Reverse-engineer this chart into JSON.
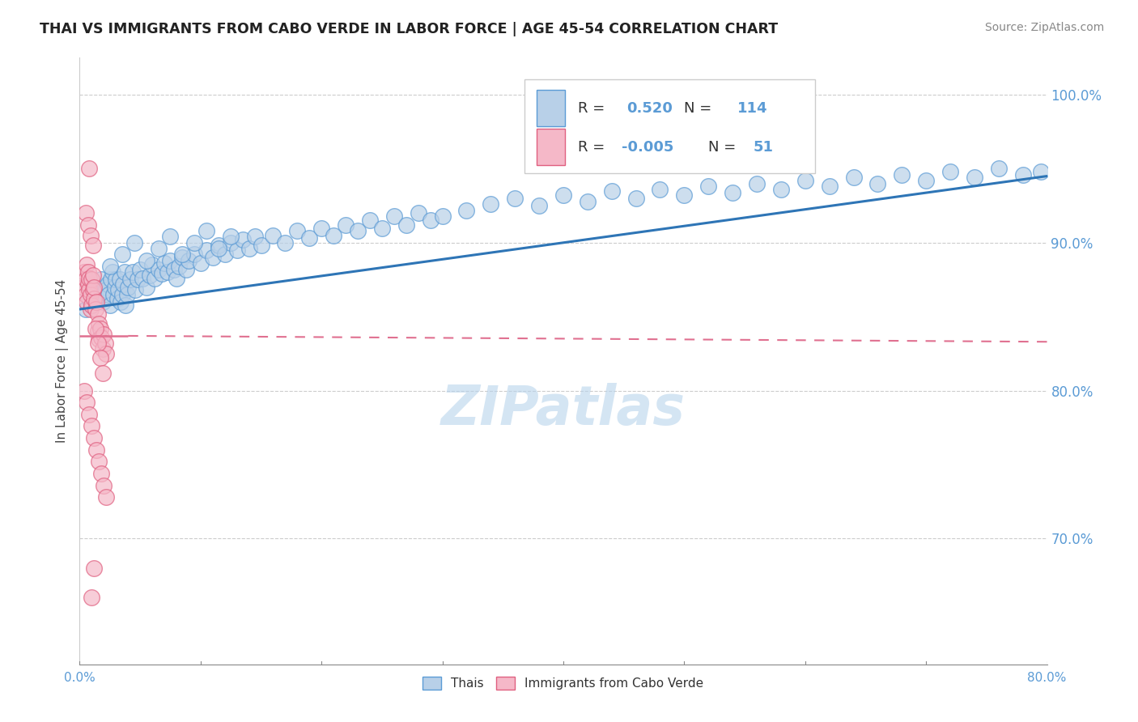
{
  "title": "THAI VS IMMIGRANTS FROM CABO VERDE IN LABOR FORCE | AGE 45-54 CORRELATION CHART",
  "source": "Source: ZipAtlas.com",
  "ylabel": "In Labor Force | Age 45-54",
  "ytick_vals": [
    0.7,
    0.8,
    0.9,
    1.0
  ],
  "xlim": [
    0.0,
    0.8
  ],
  "ylim": [
    0.615,
    1.025
  ],
  "r_thai": "0.520",
  "n_thai": "114",
  "r_cabo": "-0.005",
  "n_cabo": "51",
  "blue_fill": "#b8d0e8",
  "blue_edge": "#5b9bd5",
  "pink_fill": "#f5b8c8",
  "pink_edge": "#e06080",
  "blue_trend": "#2e75b6",
  "pink_trend": "#e07090",
  "watermark": "ZIPatlas",
  "thai_x": [
    0.005,
    0.008,
    0.01,
    0.012,
    0.013,
    0.015,
    0.016,
    0.018,
    0.019,
    0.02,
    0.021,
    0.022,
    0.023,
    0.024,
    0.025,
    0.026,
    0.027,
    0.028,
    0.029,
    0.03,
    0.031,
    0.032,
    0.033,
    0.034,
    0.035,
    0.036,
    0.037,
    0.038,
    0.039,
    0.04,
    0.042,
    0.044,
    0.046,
    0.048,
    0.05,
    0.052,
    0.055,
    0.058,
    0.06,
    0.062,
    0.065,
    0.068,
    0.07,
    0.073,
    0.075,
    0.078,
    0.08,
    0.082,
    0.085,
    0.088,
    0.09,
    0.095,
    0.1,
    0.105,
    0.11,
    0.115,
    0.12,
    0.125,
    0.13,
    0.135,
    0.14,
    0.145,
    0.15,
    0.16,
    0.17,
    0.18,
    0.19,
    0.2,
    0.21,
    0.22,
    0.23,
    0.24,
    0.25,
    0.26,
    0.27,
    0.28,
    0.29,
    0.3,
    0.32,
    0.34,
    0.36,
    0.38,
    0.4,
    0.42,
    0.44,
    0.46,
    0.48,
    0.5,
    0.52,
    0.54,
    0.56,
    0.58,
    0.6,
    0.62,
    0.64,
    0.66,
    0.68,
    0.7,
    0.72,
    0.74,
    0.76,
    0.78,
    0.795,
    0.025,
    0.035,
    0.045,
    0.055,
    0.065,
    0.075,
    0.085,
    0.095,
    0.105,
    0.115,
    0.125
  ],
  "thai_y": [
    0.855,
    0.862,
    0.858,
    0.865,
    0.87,
    0.862,
    0.868,
    0.875,
    0.86,
    0.865,
    0.87,
    0.868,
    0.872,
    0.865,
    0.858,
    0.875,
    0.88,
    0.865,
    0.87,
    0.875,
    0.862,
    0.868,
    0.875,
    0.86,
    0.865,
    0.872,
    0.88,
    0.858,
    0.865,
    0.87,
    0.875,
    0.88,
    0.868,
    0.875,
    0.882,
    0.876,
    0.87,
    0.878,
    0.885,
    0.876,
    0.882,
    0.879,
    0.886,
    0.88,
    0.888,
    0.882,
    0.876,
    0.884,
    0.89,
    0.882,
    0.888,
    0.892,
    0.886,
    0.895,
    0.89,
    0.898,
    0.892,
    0.9,
    0.895,
    0.902,
    0.896,
    0.904,
    0.898,
    0.905,
    0.9,
    0.908,
    0.903,
    0.91,
    0.905,
    0.912,
    0.908,
    0.915,
    0.91,
    0.918,
    0.912,
    0.92,
    0.915,
    0.918,
    0.922,
    0.926,
    0.93,
    0.925,
    0.932,
    0.928,
    0.935,
    0.93,
    0.936,
    0.932,
    0.938,
    0.934,
    0.94,
    0.936,
    0.942,
    0.938,
    0.944,
    0.94,
    0.946,
    0.942,
    0.948,
    0.944,
    0.95,
    0.946,
    0.948,
    0.884,
    0.892,
    0.9,
    0.888,
    0.896,
    0.904,
    0.892,
    0.9,
    0.908,
    0.896,
    0.904
  ],
  "cabo_x": [
    0.003,
    0.004,
    0.005,
    0.005,
    0.006,
    0.006,
    0.007,
    0.007,
    0.008,
    0.008,
    0.009,
    0.009,
    0.01,
    0.01,
    0.011,
    0.011,
    0.012,
    0.012,
    0.013,
    0.014,
    0.015,
    0.015,
    0.016,
    0.016,
    0.017,
    0.018,
    0.019,
    0.02,
    0.021,
    0.022,
    0.004,
    0.006,
    0.008,
    0.01,
    0.012,
    0.014,
    0.016,
    0.018,
    0.02,
    0.022,
    0.005,
    0.007,
    0.009,
    0.011,
    0.013,
    0.015,
    0.017,
    0.019,
    0.008,
    0.01,
    0.012
  ],
  "cabo_y": [
    0.87,
    0.88,
    0.865,
    0.875,
    0.885,
    0.86,
    0.872,
    0.88,
    0.868,
    0.876,
    0.855,
    0.865,
    0.875,
    0.858,
    0.868,
    0.878,
    0.862,
    0.87,
    0.855,
    0.86,
    0.84,
    0.852,
    0.845,
    0.835,
    0.842,
    0.836,
    0.828,
    0.838,
    0.832,
    0.825,
    0.8,
    0.792,
    0.784,
    0.776,
    0.768,
    0.76,
    0.752,
    0.744,
    0.736,
    0.728,
    0.92,
    0.912,
    0.905,
    0.898,
    0.842,
    0.832,
    0.822,
    0.812,
    0.95,
    0.66,
    0.68
  ]
}
